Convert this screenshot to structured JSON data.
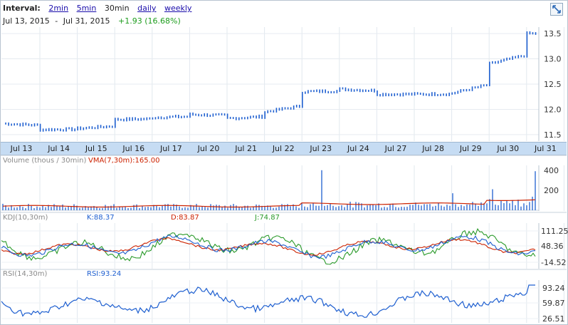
{
  "header": {
    "interval_label": "Interval:",
    "intervals": [
      {
        "label": "2min",
        "active": false
      },
      {
        "label": "5min",
        "active": false
      },
      {
        "label": "30min",
        "active": true
      },
      {
        "label": "daily",
        "active": false
      },
      {
        "label": "weekly",
        "active": false
      }
    ],
    "range_start": "Jul 13, 2015",
    "range_sep": "-",
    "range_end": "Jul 31, 2015",
    "change": "+1.93 (16.68%)"
  },
  "price_axis": {
    "ticks": [
      "13.5",
      "13.0",
      "12.5",
      "12.0",
      "11.5"
    ]
  },
  "date_axis": {
    "labels": [
      "Jul 13",
      "Jul 14",
      "Jul 15",
      "Jul 16",
      "Jul 17",
      "Jul 20",
      "Jul 21",
      "Jul 22",
      "Jul 23",
      "Jul 24",
      "Jul 27",
      "Jul 28",
      "Jul 29",
      "Jul 30",
      "Jul 31"
    ]
  },
  "volume": {
    "label": "Volume (thous / 30min)",
    "vma_label": "VMA(7,30m):165.00",
    "ticks": [
      "400",
      "200"
    ]
  },
  "kdj": {
    "label": "KDJ(10,30m)",
    "k_label": "K:88.37",
    "d_label": "D:83.87",
    "j_label": "J:74.87",
    "ticks": [
      "111.25",
      "48.36",
      "-14.52"
    ]
  },
  "rsi": {
    "label": "RSI(14,30m)",
    "value_label": "RSI:93.24",
    "ticks": [
      "93.24",
      "59.87",
      "26.51"
    ]
  },
  "colors": {
    "accent_blue": "#1e5fd0",
    "vma_red": "#cc2200",
    "j_green": "#2a9a2a",
    "change_green": "#1c9c1c",
    "axis_band": "#c6dcf3"
  },
  "chart_data": {
    "type": "line",
    "title": "",
    "xlabel": "",
    "ylabel": "",
    "x": [
      "Jul 13",
      "Jul 14",
      "Jul 15",
      "Jul 16",
      "Jul 17",
      "Jul 20",
      "Jul 21",
      "Jul 22",
      "Jul 23",
      "Jul 24",
      "Jul 27",
      "Jul 28",
      "Jul 29",
      "Jul 30",
      "Jul 31"
    ],
    "ylim": [
      11.4,
      13.6
    ],
    "series": [
      {
        "values": [
          11.72,
          11.6,
          11.62,
          11.8,
          11.84,
          11.9,
          11.82,
          11.95,
          12.35,
          12.4,
          12.3,
          12.3,
          12.32,
          12.9,
          13.5
        ]
      }
    ],
    "grid": true,
    "legend": "none"
  }
}
